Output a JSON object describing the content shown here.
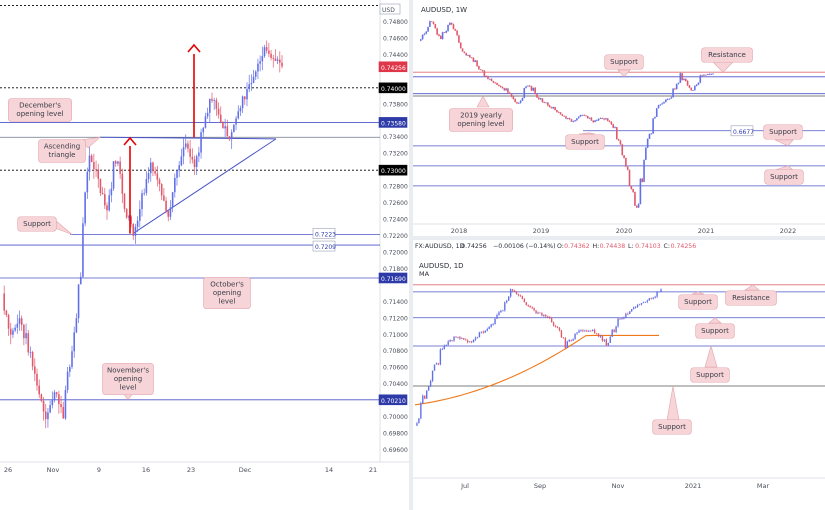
{
  "charts": {
    "left": {
      "price_labels": [
        "0.74800",
        "0.74600",
        "0.74400",
        "0.74000",
        "0.73800",
        "0.73400",
        "0.73200",
        "0.72800",
        "0.72600",
        "0.72400",
        "0.72200",
        "0.72000",
        "0.71800",
        "0.71400",
        "0.71200",
        "0.71000",
        "0.70800",
        "0.70600",
        "0.70400",
        "0.70000",
        "0.69800",
        "0.69600"
      ],
      "date_labels": [
        "26",
        "Nov",
        "9",
        "16",
        "23",
        "Dec",
        "14",
        "21"
      ],
      "annotations": {
        "december": "December's opening level",
        "ascending": "Ascending triangle",
        "support": "Support",
        "october": "October's opening level",
        "november": "November's opening level"
      },
      "level_tags": {
        "current": "0.74256",
        "l74000": "0.74000",
        "l73580": "0.73580",
        "l73000": "0.73000",
        "l72223": "0.7223",
        "l72099": "0.7209",
        "l71690": "0.71690",
        "l70210": "0.70210"
      },
      "usd_tag": "USD"
    },
    "weekly": {
      "title": "AUDUSD, 1W",
      "year_labels": [
        "2018",
        "2019",
        "2020",
        "2021",
        "2022"
      ],
      "annotations": {
        "resistance": "Resistance",
        "support_top": "Support",
        "yearly": "2019 yearly opening level",
        "support_mid": "Support",
        "support_right1": "Support",
        "support_right2": "Support"
      },
      "level_tag": "0.6677"
    },
    "daily": {
      "header": {
        "symbol": "FX:AUDUSD, 1D",
        "price": "0.74256",
        "change": "−0.00106 (−0.14%)",
        "o_label": "O:",
        "o": "0.74362",
        "h_label": "H:",
        "h": "0.74438",
        "l_label": "L:",
        "l": "0.74103",
        "c_label": "C:",
        "c": "0.74256"
      },
      "title": "AUDUSD, 1D",
      "ma_label": "MA",
      "month_labels": [
        "Jul",
        "Sep",
        "Nov",
        "2021",
        "Mar"
      ],
      "annotations": {
        "support1": "Support",
        "resistance": "Resistance",
        "support2": "Support",
        "support3": "Support",
        "support4": "Support"
      }
    }
  },
  "colors": {
    "bull": "#6270e8",
    "bear": "#e0586b",
    "level": "#4a55c8",
    "resistance": "#e06a74",
    "arrow": "#e60000",
    "callout_bg": "#f6d4d7",
    "callout_border": "#e3a6ad",
    "ma": "#f07818",
    "tag_dark": "#000000",
    "tag_red": "#e0364a",
    "tag_blue": "#2d3aa8"
  }
}
